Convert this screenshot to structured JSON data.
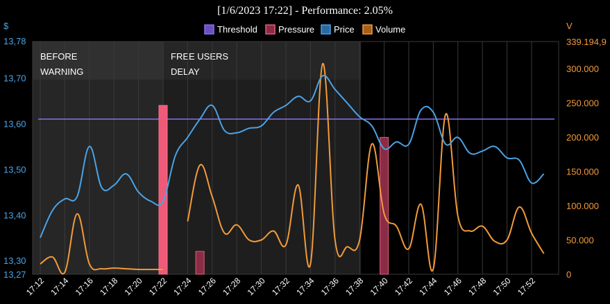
{
  "chart_data": {
    "type": "line",
    "title": "[1/6/2023 17:22] - Performance: 2.05%",
    "left_axis": {
      "unit_label": "$",
      "ylim": [
        13.27,
        13.78
      ],
      "ticks": [
        "13,78",
        "13,70",
        "13,60",
        "13,50",
        "13,40",
        "13,30",
        "13,27"
      ],
      "tick_values": [
        13.78,
        13.7,
        13.6,
        13.5,
        13.4,
        13.3,
        13.27
      ]
    },
    "right_axis": {
      "unit_label": "V",
      "ylim": [
        0,
        339194.9
      ],
      "ticks": [
        "339.194,9",
        "300.000",
        "250.000",
        "200.000",
        "150.000",
        "100.000",
        "50.000",
        "0"
      ],
      "tick_values": [
        339194.9,
        300000,
        250000,
        200000,
        150000,
        100000,
        50000,
        0
      ]
    },
    "x_axis": {
      "ticks": [
        "17:12",
        "17:14",
        "17:16",
        "17:18",
        "17:20",
        "17:22",
        "17:24",
        "17:26",
        "17:28",
        "17:30",
        "17:32",
        "17:34",
        "17:36",
        "17:38",
        "17:40",
        "17:42",
        "17:44",
        "17:46",
        "17:48",
        "17:50",
        "17:52"
      ]
    },
    "legend": {
      "placement": "top-center",
      "items": [
        {
          "name": "Threshold",
          "color": "#6a4fc4",
          "border": "#8b6ff0"
        },
        {
          "name": "Pressure",
          "color": "#8a2c45",
          "border": "#e0607e"
        },
        {
          "name": "Price",
          "color": "#2a6aa0",
          "border": "#4aa3e6"
        },
        {
          "name": "Volume",
          "color": "#a85f18",
          "border": "#f39b3b"
        }
      ]
    },
    "zones": [
      {
        "label_lines": [
          "BEFORE",
          "WARNING"
        ],
        "x_start": "17:12",
        "x_end": "17:22"
      },
      {
        "label_lines": [
          "FREE USERS",
          "DELAY"
        ],
        "x_start": "17:22",
        "x_end": "17:38"
      }
    ],
    "threshold": {
      "value": 13.61,
      "color": "#8b6ff0"
    },
    "series": [
      {
        "name": "Price",
        "axis": "left",
        "color": "#4aa3e6",
        "x": [
          0,
          1,
          2,
          3,
          4,
          5,
          6,
          7,
          8,
          9,
          10,
          11,
          12,
          13,
          14,
          15,
          16,
          17,
          18,
          19,
          20,
          21,
          22,
          23,
          24,
          25,
          26,
          27,
          28,
          29,
          30,
          31,
          32,
          33,
          34,
          35,
          36,
          37,
          38,
          39,
          40,
          41
        ],
        "values": [
          13.35,
          13.41,
          13.435,
          13.44,
          13.55,
          13.46,
          13.465,
          13.49,
          13.45,
          13.43,
          13.43,
          13.53,
          13.57,
          13.61,
          13.64,
          13.585,
          13.58,
          13.59,
          13.595,
          13.625,
          13.64,
          13.66,
          13.65,
          13.705,
          13.675,
          13.645,
          13.615,
          13.595,
          13.545,
          13.56,
          13.555,
          13.63,
          13.625,
          13.555,
          13.57,
          13.535,
          13.54,
          13.55,
          13.525,
          13.52,
          13.47,
          13.49
        ]
      },
      {
        "name": "Volume",
        "axis": "right",
        "color": "#f39b3b",
        "segments": [
          {
            "x": [
              0,
              1,
              2,
              3,
              4,
              5,
              6,
              7,
              8,
              9,
              10
            ],
            "values": [
              15000,
              25000,
              3000,
              88000,
              15000,
              8000,
              9000,
              8000,
              7000,
              7000,
              7000
            ]
          },
          {
            "x": [
              12,
              13,
              14,
              15,
              16,
              17,
              18,
              19,
              20,
              21,
              22,
              23,
              24,
              25,
              26,
              27,
              28,
              29,
              30,
              31,
              32,
              33,
              34,
              35,
              36,
              37,
              38,
              39,
              40,
              41
            ],
            "values": [
              77000,
              159000,
              113000,
              60000,
              72000,
              50000,
              50000,
              63000,
              43000,
              130000,
              15000,
              307000,
              50000,
              40000,
              50000,
              190000,
              88000,
              70000,
              37000,
              102000,
              8000,
              233000,
              85000,
              63000,
              70000,
              48000,
              50000,
              98000,
              60000,
              30000
            ]
          }
        ]
      },
      {
        "name": "Pressure",
        "axis": "left",
        "color": "#8a2c45",
        "bars": [
          {
            "x": 10,
            "value": 13.64,
            "highlight": true
          },
          {
            "x": 13,
            "value": 13.32,
            "highlight": false
          },
          {
            "x": 28,
            "value": 13.57,
            "highlight": false
          }
        ]
      }
    ]
  }
}
